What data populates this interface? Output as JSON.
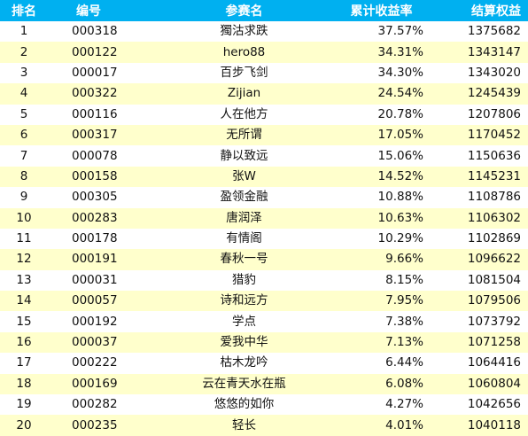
{
  "headers": {
    "rank": "排名",
    "code": "编号",
    "name": "参赛名",
    "return": "累计收益率",
    "equity": "结算权益"
  },
  "rows": [
    {
      "rank": "1",
      "code": "000318",
      "name": "獨沽求跌",
      "return": "37.57%",
      "equity": "1375682"
    },
    {
      "rank": "2",
      "code": "000122",
      "name": "hero88",
      "return": "34.31%",
      "equity": "1343147"
    },
    {
      "rank": "3",
      "code": "000017",
      "name": "百步飞剑",
      "return": "34.30%",
      "equity": "1343020"
    },
    {
      "rank": "4",
      "code": "000322",
      "name": "Zijian",
      "return": "24.54%",
      "equity": "1245439"
    },
    {
      "rank": "5",
      "code": "000116",
      "name": "人在他方",
      "return": "20.78%",
      "equity": "1207806"
    },
    {
      "rank": "6",
      "code": "000317",
      "name": "无所谓",
      "return": "17.05%",
      "equity": "1170452"
    },
    {
      "rank": "7",
      "code": "000078",
      "name": "静以致远",
      "return": "15.06%",
      "equity": "1150636"
    },
    {
      "rank": "8",
      "code": "000158",
      "name": "张W",
      "return": "14.52%",
      "equity": "1145231"
    },
    {
      "rank": "9",
      "code": "000305",
      "name": "盈领金融",
      "return": "10.88%",
      "equity": "1108786"
    },
    {
      "rank": "10",
      "code": "000283",
      "name": "唐润泽",
      "return": "10.63%",
      "equity": "1106302"
    },
    {
      "rank": "11",
      "code": "000178",
      "name": "有情阁",
      "return": "10.29%",
      "equity": "1102869"
    },
    {
      "rank": "12",
      "code": "000191",
      "name": "春秋一号",
      "return": "9.66%",
      "equity": "1096622"
    },
    {
      "rank": "13",
      "code": "000031",
      "name": "猎豹",
      "return": "8.15%",
      "equity": "1081504"
    },
    {
      "rank": "14",
      "code": "000057",
      "name": "诗和远方",
      "return": "7.95%",
      "equity": "1079506"
    },
    {
      "rank": "15",
      "code": "000192",
      "name": "学点",
      "return": "7.38%",
      "equity": "1073792"
    },
    {
      "rank": "16",
      "code": "000037",
      "name": "爱我中华",
      "return": "7.13%",
      "equity": "1071258"
    },
    {
      "rank": "17",
      "code": "000222",
      "name": "枯木龙吟",
      "return": "6.44%",
      "equity": "1064416"
    },
    {
      "rank": "18",
      "code": "000169",
      "name": "云在青天水在瓶",
      "return": "6.08%",
      "equity": "1060804"
    },
    {
      "rank": "19",
      "code": "000282",
      "name": "悠悠的如你",
      "return": "4.27%",
      "equity": "1042656"
    },
    {
      "rank": "20",
      "code": "000235",
      "name": "轻长",
      "return": "4.01%",
      "equity": "1040118"
    }
  ],
  "colors": {
    "header_bg": "#00b0f0",
    "header_text": "#ffffff",
    "stripe": "#ffffcc"
  }
}
